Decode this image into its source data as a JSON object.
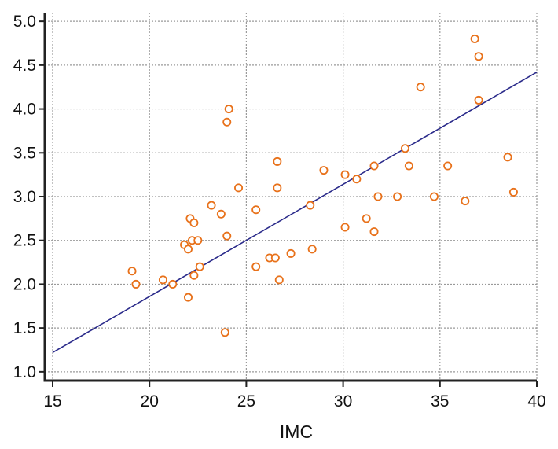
{
  "chart_data": {
    "type": "scatter",
    "title": "",
    "xlabel": "IMC",
    "ylabel": "",
    "xlim": [
      15,
      40
    ],
    "ylim": [
      0.9,
      5.1
    ],
    "xticks": [
      15,
      20,
      25,
      30,
      35,
      40
    ],
    "xtick_labels": [
      "15",
      "20",
      "25",
      "30",
      "35",
      "40"
    ],
    "yticks": [
      1.0,
      1.5,
      2.0,
      2.5,
      3.0,
      3.5,
      4.0,
      4.5,
      5.0
    ],
    "ytick_labels": [
      "1.0",
      "1.5",
      "2.0",
      "2.5",
      "3.0",
      "3.5",
      "4.0",
      "4.5",
      "5.0"
    ],
    "grid": true,
    "legend": "none",
    "colors": {
      "points": "#e8711a",
      "regression": "#2a2a8a",
      "grid": "#9a9a9a",
      "axes": "#222222"
    },
    "regression_line": {
      "x": [
        15,
        40
      ],
      "y": [
        1.22,
        4.42
      ]
    },
    "points": {
      "x": [
        19.1,
        19.3,
        20.7,
        21.2,
        21.8,
        22.0,
        22.0,
        22.1,
        22.2,
        22.3,
        22.3,
        22.5,
        22.6,
        23.2,
        23.7,
        23.9,
        24.0,
        24.0,
        24.1,
        24.6,
        25.5,
        25.5,
        26.2,
        26.5,
        26.6,
        26.6,
        26.7,
        27.3,
        28.3,
        28.4,
        29.0,
        30.1,
        30.1,
        30.7,
        31.2,
        31.6,
        31.6,
        31.8,
        32.8,
        33.2,
        33.4,
        34.0,
        34.7,
        35.4,
        36.3,
        36.8,
        37.0,
        37.0,
        38.5,
        38.8
      ],
      "y": [
        2.15,
        2.0,
        2.05,
        2.0,
        2.45,
        2.4,
        1.85,
        2.75,
        2.5,
        2.7,
        2.1,
        2.5,
        2.2,
        2.9,
        2.8,
        1.45,
        2.55,
        3.85,
        4.0,
        3.1,
        2.85,
        2.2,
        2.3,
        2.3,
        3.4,
        3.1,
        2.05,
        2.35,
        2.9,
        2.4,
        3.3,
        3.25,
        2.65,
        3.2,
        2.75,
        3.35,
        2.6,
        3.0,
        3.0,
        3.55,
        3.35,
        4.25,
        3.0,
        3.35,
        2.95,
        4.8,
        4.1,
        4.6,
        3.45,
        3.05
      ]
    }
  }
}
